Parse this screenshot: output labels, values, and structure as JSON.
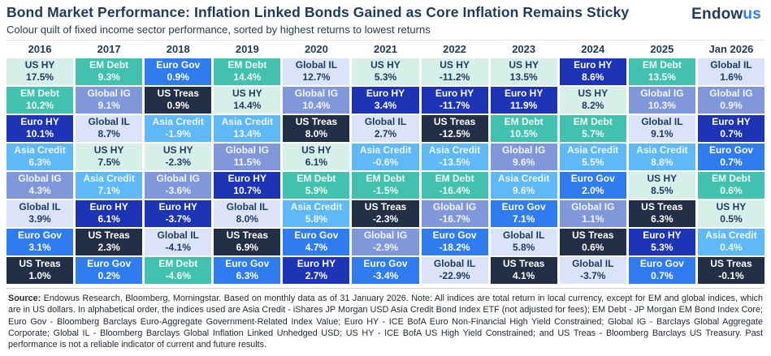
{
  "header": {
    "title": "Bond Market Performance: Inflation Linked Bonds Gained as Core Inflation Remains Sticky",
    "subtitle": "Colour quilt of fixed income sector performance, sorted by highest returns to lowest returns",
    "logo": {
      "part1": "Endow",
      "part2": "us",
      "part1_color": "#1e3a5f",
      "part2_color": "#2d7ff0"
    }
  },
  "chart_data": {
    "type": "heatmap",
    "title": "Bond Market Performance: Inflation Linked Bonds Gained as Core Inflation Remains Sticky",
    "subtitle": "Colour quilt of fixed income sector performance, sorted by highest returns to lowest returns",
    "unit": "%",
    "sort": "each column sorted highest to lowest return",
    "sector_colors": {
      "US HY": {
        "bg": "#d6efe9",
        "text": "#1e3a5f"
      },
      "EM Debt": {
        "bg": "#41c1ae",
        "text": "#f2fbf9"
      },
      "Euro Gov": {
        "bg": "#2e7cee",
        "text": "#ffffff"
      },
      "Euro HY": {
        "bg": "#1d34b6",
        "text": "#ffffff"
      },
      "Global IL": {
        "bg": "#dbe3f8",
        "text": "#1e3a5f"
      },
      "Global IG": {
        "bg": "#8098d9",
        "text": "#f2f5fc"
      },
      "Asia Credit": {
        "bg": "#5eb9f6",
        "text": "#eef7ff"
      },
      "US Treas": {
        "bg": "#232f47",
        "text": "#ffffff"
      }
    },
    "columns": [
      {
        "label": "2016",
        "cells": [
          {
            "sector": "US HY",
            "value": 17.5
          },
          {
            "sector": "EM Debt",
            "value": 10.2
          },
          {
            "sector": "Euro HY",
            "value": 10.1
          },
          {
            "sector": "Asia Credit",
            "value": 6.3
          },
          {
            "sector": "Global IG",
            "value": 4.3
          },
          {
            "sector": "Global IL",
            "value": 3.9
          },
          {
            "sector": "Euro Gov",
            "value": 3.1
          },
          {
            "sector": "US Treas",
            "value": 1.0
          }
        ]
      },
      {
        "label": "2017",
        "cells": [
          {
            "sector": "EM Debt",
            "value": 9.3
          },
          {
            "sector": "Global IG",
            "value": 9.1
          },
          {
            "sector": "Global IL",
            "value": 8.7
          },
          {
            "sector": "US HY",
            "value": 7.5
          },
          {
            "sector": "Asia Credit",
            "value": 7.1
          },
          {
            "sector": "Euro HY",
            "value": 6.1
          },
          {
            "sector": "US Treas",
            "value": 2.3
          },
          {
            "sector": "Euro Gov",
            "value": 0.2
          }
        ]
      },
      {
        "label": "2018",
        "cells": [
          {
            "sector": "Euro Gov",
            "value": 0.9
          },
          {
            "sector": "US Treas",
            "value": 0.9
          },
          {
            "sector": "Asia Credit",
            "value": -1.9
          },
          {
            "sector": "US HY",
            "value": -2.3
          },
          {
            "sector": "Global IG",
            "value": -3.6
          },
          {
            "sector": "Euro HY",
            "value": -3.7
          },
          {
            "sector": "Global IL",
            "value": -4.1
          },
          {
            "sector": "EM Debt",
            "value": -4.6
          }
        ]
      },
      {
        "label": "2019",
        "cells": [
          {
            "sector": "EM Debt",
            "value": 14.4
          },
          {
            "sector": "US HY",
            "value": 14.4
          },
          {
            "sector": "Asia Credit",
            "value": 13.4
          },
          {
            "sector": "Global IG",
            "value": 11.5
          },
          {
            "sector": "Euro HY",
            "value": 10.7
          },
          {
            "sector": "Global IL",
            "value": 8.0
          },
          {
            "sector": "US Treas",
            "value": 6.9
          },
          {
            "sector": "Euro Gov",
            "value": 6.3
          }
        ]
      },
      {
        "label": "2020",
        "cells": [
          {
            "sector": "Global IL",
            "value": 12.7
          },
          {
            "sector": "Global IG",
            "value": 10.4
          },
          {
            "sector": "US Treas",
            "value": 8.0
          },
          {
            "sector": "US HY",
            "value": 6.1
          },
          {
            "sector": "EM Debt",
            "value": 5.9
          },
          {
            "sector": "Asia Credit",
            "value": 5.8
          },
          {
            "sector": "Euro Gov",
            "value": 4.7
          },
          {
            "sector": "Euro HY",
            "value": 2.7
          }
        ]
      },
      {
        "label": "2021",
        "cells": [
          {
            "sector": "US HY",
            "value": 5.3
          },
          {
            "sector": "Euro HY",
            "value": 3.4
          },
          {
            "sector": "Global IL",
            "value": 2.7
          },
          {
            "sector": "Asia Credit",
            "value": -0.6
          },
          {
            "sector": "EM Debt",
            "value": -1.5
          },
          {
            "sector": "US Treas",
            "value": -2.3
          },
          {
            "sector": "Global IG",
            "value": -2.9
          },
          {
            "sector": "Euro Gov",
            "value": -3.4
          }
        ]
      },
      {
        "label": "2022",
        "cells": [
          {
            "sector": "US HY",
            "value": -11.2
          },
          {
            "sector": "Euro HY",
            "value": -11.7
          },
          {
            "sector": "US Treas",
            "value": -12.5
          },
          {
            "sector": "Asia Credit",
            "value": -13.5
          },
          {
            "sector": "EM Debt",
            "value": -16.4
          },
          {
            "sector": "Global IG",
            "value": -16.7
          },
          {
            "sector": "Euro Gov",
            "value": -18.2
          },
          {
            "sector": "Global IL",
            "value": -22.9
          }
        ]
      },
      {
        "label": "2023",
        "cells": [
          {
            "sector": "US HY",
            "value": 13.5
          },
          {
            "sector": "Euro HY",
            "value": 11.9
          },
          {
            "sector": "EM Debt",
            "value": 10.5
          },
          {
            "sector": "Global IG",
            "value": 9.6
          },
          {
            "sector": "Asia Credit",
            "value": 9.6
          },
          {
            "sector": "Euro Gov",
            "value": 7.1
          },
          {
            "sector": "Global IL",
            "value": 5.8
          },
          {
            "sector": "US Treas",
            "value": 4.1
          }
        ]
      },
      {
        "label": "2024",
        "cells": [
          {
            "sector": "Euro HY",
            "value": 8.6
          },
          {
            "sector": "US HY",
            "value": 8.2
          },
          {
            "sector": "EM Debt",
            "value": 5.7
          },
          {
            "sector": "Asia Credit",
            "value": 5.5
          },
          {
            "sector": "Euro Gov",
            "value": 2.0
          },
          {
            "sector": "Global IG",
            "value": 1.1
          },
          {
            "sector": "US Treas",
            "value": 0.6
          },
          {
            "sector": "Global IL",
            "value": -3.7
          }
        ]
      },
      {
        "label": "2025",
        "cells": [
          {
            "sector": "EM Debt",
            "value": 13.5
          },
          {
            "sector": "Global IG",
            "value": 10.3
          },
          {
            "sector": "Global IL",
            "value": 9.1
          },
          {
            "sector": "Asia Credit",
            "value": 8.8
          },
          {
            "sector": "US HY",
            "value": 8.5
          },
          {
            "sector": "US Treas",
            "value": 6.3
          },
          {
            "sector": "Euro HY",
            "value": 5.3
          },
          {
            "sector": "Euro Gov",
            "value": 0.7
          }
        ]
      },
      {
        "label": "Jan 2026",
        "cells": [
          {
            "sector": "Global IL",
            "value": 1.6
          },
          {
            "sector": "Global IG",
            "value": 0.9
          },
          {
            "sector": "Euro HY",
            "value": 0.7
          },
          {
            "sector": "Euro Gov",
            "value": 0.7
          },
          {
            "sector": "EM Debt",
            "value": 0.6
          },
          {
            "sector": "US HY",
            "value": 0.5
          },
          {
            "sector": "Asia Credit",
            "value": 0.4
          },
          {
            "sector": "US Treas",
            "value": -0.1
          }
        ]
      }
    ]
  },
  "footer": {
    "source_label": "Source:",
    "text": " Endowus Research, Bloomberg, Morningstar. Based on monthly data as of 31 January 2026. Note: All indices are total return in local currency, except for EM and global indices, which are in US dollars. In alphabetical order, the indices used are Asia Credit - iShares JP Morgan USD Asia Credit Bond Index ETF (not adjusted for fees); EM Debt - JP Morgan EM Bond Index Core; Euro Gov - Bloomberg Barclays Euro-Aggregate Government-Related Index Value; Euro HY - ICE BofA Euro Non-Financial High Yield Constrained; Global IG - Barclays Global Aggregate Corporate; Global IL - Bloomberg Barclays Global Inflation Linked Unhedged USD; US HY - ICE BofA US High Yield Constrained; and US Treas - Bloomberg Barclays US Treasury. Past performance is not a reliable indicator of current and future results."
  }
}
